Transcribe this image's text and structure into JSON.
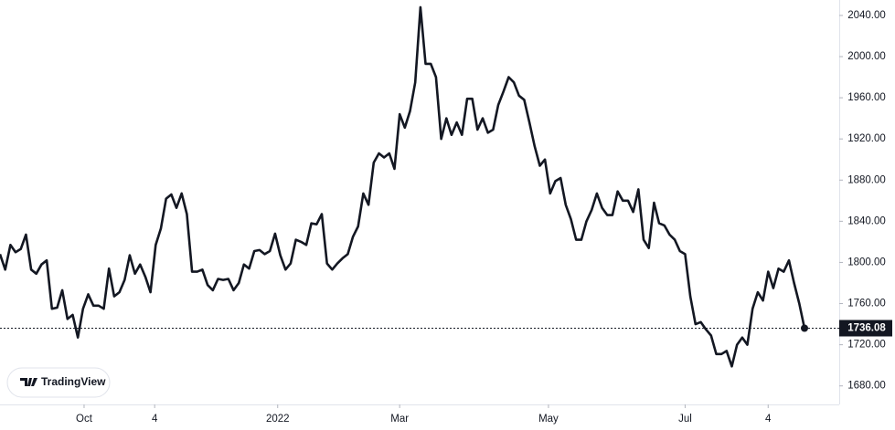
{
  "chart_data": {
    "type": "line",
    "watermark": "TradingView",
    "values": [
      1808,
      1793,
      1817,
      1810,
      1813,
      1827,
      1793,
      1789,
      1798,
      1802,
      1755,
      1756,
      1773,
      1745,
      1749,
      1727,
      1755,
      1769,
      1758,
      1758,
      1755,
      1794,
      1767,
      1771,
      1783,
      1807,
      1789,
      1798,
      1786,
      1771,
      1817,
      1833,
      1862,
      1866,
      1853,
      1867,
      1847,
      1791,
      1791,
      1793,
      1778,
      1773,
      1784,
      1783,
      1784,
      1773,
      1780,
      1798,
      1794,
      1811,
      1812,
      1808,
      1811,
      1828,
      1807,
      1793,
      1799,
      1822,
      1820,
      1817,
      1838,
      1837,
      1847,
      1799,
      1793,
      1799,
      1804,
      1808,
      1825,
      1835,
      1867,
      1856,
      1897,
      1906,
      1902,
      1906,
      1891,
      1944,
      1931,
      1947,
      1975,
      2048,
      1993,
      1993,
      1980,
      1920,
      1940,
      1924,
      1936,
      1924,
      1959,
      1959,
      1929,
      1940,
      1926,
      1929,
      1953,
      1966,
      1980,
      1975,
      1962,
      1958,
      1936,
      1913,
      1894,
      1900,
      1867,
      1879,
      1882,
      1856,
      1842,
      1822,
      1822,
      1840,
      1851,
      1867,
      1853,
      1846,
      1846,
      1869,
      1860,
      1860,
      1849,
      1871,
      1822,
      1814,
      1858,
      1838,
      1836,
      1827,
      1822,
      1811,
      1808,
      1767,
      1740,
      1742,
      1735,
      1729,
      1711,
      1711,
      1714,
      1699,
      1720,
      1727,
      1720,
      1755,
      1771,
      1763,
      1791,
      1775,
      1794,
      1791,
      1802,
      1780,
      1760,
      1736.08
    ],
    "color": "#131722",
    "xlim": [
      0,
      155
    ],
    "xticks": [
      {
        "value": 16.2,
        "label": "Oct"
      },
      {
        "value": 29.8,
        "label": "4"
      },
      {
        "value": 53.5,
        "label": "2022"
      },
      {
        "value": 77,
        "label": "Mar"
      },
      {
        "value": 105.67,
        "label": "May"
      },
      {
        "value": 132,
        "label": "Jul"
      },
      {
        "value": 148,
        "label": "4"
      }
    ],
    "ylim": [
      1662,
      2055
    ],
    "yticks": [
      {
        "value": 1680,
        "label": "1680.00"
      },
      {
        "value": 1720,
        "label": "1720.00"
      },
      {
        "value": 1760,
        "label": "1760.00"
      },
      {
        "value": 1800,
        "label": "1800.00"
      },
      {
        "value": 1840,
        "label": "1840.00"
      },
      {
        "value": 1880,
        "label": "1880.00"
      },
      {
        "value": 1920,
        "label": "1920.00"
      },
      {
        "value": 1960,
        "label": "1960.00"
      },
      {
        "value": 2000,
        "label": "2000.00"
      },
      {
        "value": 2040,
        "label": "2040.00"
      }
    ]
  }
}
